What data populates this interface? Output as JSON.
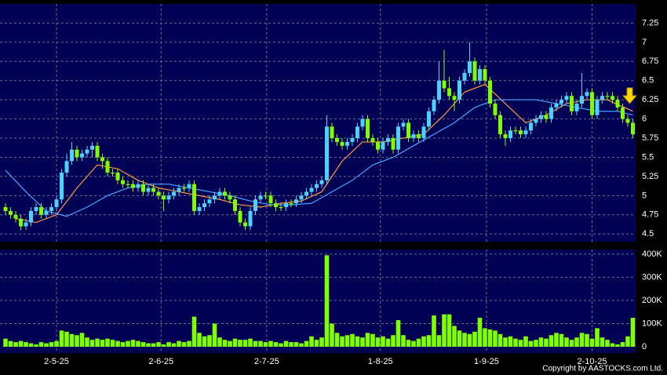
{
  "chart_data": [
    {
      "type": "candlestick",
      "open": [
        4.85,
        4.8,
        4.75,
        4.7,
        4.6,
        4.65,
        4.8,
        4.85,
        4.75,
        4.8,
        4.85,
        4.95,
        5.3,
        5.45,
        5.6,
        5.5,
        5.55,
        5.6,
        5.65,
        5.5,
        5.45,
        5.3,
        5.3,
        5.2,
        5.15,
        5.15,
        5.1,
        5.15,
        5.05,
        5.1,
        5.05,
        5.0,
        4.95,
        5.0,
        5.05,
        5.1,
        5.1,
        5.15,
        4.8,
        4.85,
        4.9,
        4.95,
        5.0,
        5.05,
        5.0,
        4.95,
        4.8,
        4.65,
        4.6,
        4.8,
        4.95,
        5.0,
        5.0,
        4.9,
        4.85,
        4.85,
        4.9,
        4.9,
        4.95,
        5.0,
        5.05,
        5.1,
        5.15,
        5.2,
        5.9,
        5.75,
        5.7,
        5.65,
        5.7,
        5.75,
        5.9,
        6.0,
        5.75,
        5.7,
        5.6,
        5.7,
        5.75,
        5.6,
        5.9,
        5.95,
        5.75,
        5.8,
        5.75,
        5.9,
        6.1,
        6.25,
        6.5,
        6.4,
        6.3,
        6.25,
        6.5,
        6.6,
        6.75,
        6.5,
        6.65,
        6.5,
        6.2,
        6.05,
        5.8,
        5.75,
        5.85,
        5.85,
        5.8,
        5.85,
        5.95,
        6.0,
        6.05,
        6.0,
        6.15,
        6.2,
        6.25,
        6.3,
        6.1,
        6.2,
        6.3,
        6.35,
        6.05,
        6.25,
        6.3,
        6.3,
        6.25,
        6.15,
        6.0,
        5.95
      ],
      "high": [
        4.9,
        4.85,
        4.8,
        4.75,
        4.7,
        4.85,
        4.9,
        4.9,
        4.85,
        4.9,
        5.0,
        5.35,
        5.55,
        5.7,
        5.65,
        5.6,
        5.65,
        5.7,
        5.7,
        5.55,
        5.5,
        5.35,
        5.35,
        5.25,
        5.2,
        5.2,
        5.2,
        5.2,
        5.15,
        5.15,
        5.1,
        5.05,
        5.05,
        5.1,
        5.15,
        5.15,
        5.2,
        5.2,
        4.9,
        4.95,
        5.0,
        5.05,
        5.1,
        5.1,
        5.05,
        5.0,
        4.85,
        4.7,
        4.85,
        5.0,
        5.05,
        5.05,
        5.05,
        4.95,
        4.9,
        4.95,
        4.95,
        5.0,
        5.05,
        5.1,
        5.15,
        5.2,
        5.25,
        6.05,
        5.95,
        5.8,
        5.75,
        5.75,
        5.8,
        5.95,
        6.05,
        6.05,
        5.8,
        5.75,
        5.75,
        5.8,
        5.8,
        5.95,
        6.0,
        6.0,
        5.85,
        5.85,
        5.95,
        6.15,
        6.3,
        6.75,
        6.9,
        6.55,
        6.35,
        6.55,
        6.65,
        7.0,
        6.8,
        6.7,
        6.7,
        6.55,
        6.25,
        6.1,
        5.85,
        5.9,
        5.9,
        5.9,
        5.9,
        6.0,
        6.05,
        6.1,
        6.1,
        6.2,
        6.25,
        6.3,
        6.35,
        6.35,
        6.25,
        6.6,
        6.4,
        6.4,
        6.3,
        6.35,
        6.35,
        6.35,
        6.3,
        6.2,
        6.05,
        6.0
      ],
      "low": [
        4.75,
        4.7,
        4.65,
        4.55,
        4.55,
        4.6,
        4.75,
        4.7,
        4.7,
        4.75,
        4.8,
        4.9,
        5.25,
        5.4,
        5.45,
        5.45,
        5.5,
        5.5,
        5.45,
        5.35,
        5.25,
        5.25,
        5.15,
        5.1,
        5.1,
        5.05,
        5.05,
        5.0,
        5.0,
        5.0,
        4.95,
        4.8,
        4.9,
        4.95,
        5.0,
        5.05,
        5.05,
        4.75,
        4.75,
        4.8,
        4.85,
        4.9,
        4.95,
        4.95,
        4.9,
        4.75,
        4.6,
        4.55,
        4.55,
        4.75,
        4.9,
        4.95,
        4.85,
        4.8,
        4.8,
        4.8,
        4.85,
        4.85,
        4.9,
        4.95,
        5.0,
        5.05,
        5.1,
        5.15,
        5.7,
        5.65,
        5.6,
        5.6,
        5.65,
        5.7,
        5.85,
        5.7,
        5.65,
        5.55,
        5.55,
        5.65,
        5.55,
        5.55,
        5.85,
        5.7,
        5.7,
        5.7,
        5.7,
        5.85,
        6.05,
        6.2,
        6.35,
        6.25,
        6.1,
        6.2,
        6.45,
        6.55,
        6.45,
        6.45,
        6.45,
        6.15,
        6.0,
        5.75,
        5.65,
        5.7,
        5.8,
        5.75,
        5.75,
        5.8,
        5.9,
        5.95,
        5.95,
        5.95,
        6.1,
        6.15,
        6.2,
        6.05,
        6.05,
        6.15,
        6.25,
        6.0,
        6.0,
        6.2,
        6.25,
        6.2,
        6.1,
        5.95,
        5.9,
        5.75
      ],
      "close": [
        4.8,
        4.75,
        4.7,
        4.6,
        4.65,
        4.8,
        4.85,
        4.75,
        4.8,
        4.85,
        4.95,
        5.3,
        5.45,
        5.6,
        5.5,
        5.55,
        5.6,
        5.65,
        5.5,
        5.45,
        5.3,
        5.3,
        5.2,
        5.15,
        5.15,
        5.1,
        5.15,
        5.05,
        5.1,
        5.05,
        5.0,
        4.95,
        5.0,
        5.05,
        5.1,
        5.1,
        5.15,
        4.8,
        4.85,
        4.9,
        4.95,
        5.0,
        5.05,
        5.0,
        4.95,
        4.8,
        4.65,
        4.6,
        4.8,
        4.95,
        5.0,
        5.0,
        4.9,
        4.85,
        4.85,
        4.9,
        4.9,
        4.95,
        5.0,
        5.05,
        5.1,
        5.15,
        5.2,
        5.9,
        5.75,
        5.7,
        5.65,
        5.7,
        5.75,
        5.9,
        6.0,
        5.75,
        5.7,
        5.6,
        5.7,
        5.75,
        5.6,
        5.9,
        5.95,
        5.75,
        5.8,
        5.75,
        5.9,
        6.1,
        6.25,
        6.5,
        6.4,
        6.3,
        6.25,
        6.5,
        6.6,
        6.75,
        6.5,
        6.65,
        6.5,
        6.2,
        6.05,
        5.8,
        5.75,
        5.85,
        5.85,
        5.8,
        5.85,
        5.95,
        6.0,
        6.05,
        6.0,
        6.15,
        6.2,
        6.25,
        6.3,
        6.1,
        6.2,
        6.3,
        6.35,
        6.05,
        6.25,
        6.3,
        6.3,
        6.25,
        6.15,
        6.0,
        5.95,
        5.8
      ],
      "up_color": "#4cd2ff",
      "down_color": "#80ff00",
      "lines": [
        {
          "color": "#ff9a3c",
          "x": [
            2,
            6,
            10,
            14,
            18,
            22,
            26,
            30,
            34,
            38,
            42,
            46,
            50,
            54,
            58,
            62,
            66,
            70,
            74,
            78,
            82,
            86,
            90,
            94,
            98,
            102,
            106,
            110,
            114,
            118,
            123
          ],
          "values": [
            4.7,
            4.65,
            4.75,
            5.1,
            5.4,
            5.35,
            5.2,
            5.1,
            5.05,
            5.0,
            4.95,
            4.88,
            4.85,
            4.9,
            4.93,
            5.05,
            5.45,
            5.7,
            5.7,
            5.75,
            5.8,
            6.05,
            6.35,
            6.45,
            6.2,
            5.95,
            6.05,
            6.2,
            6.25,
            6.25,
            6.1
          ]
        },
        {
          "color": "#4fa3ff",
          "x": [
            0,
            4,
            8,
            12,
            16,
            20,
            24,
            28,
            32,
            36,
            40,
            44,
            48,
            52,
            56,
            60,
            64,
            68,
            72,
            76,
            80,
            84,
            88,
            92,
            96,
            100,
            104,
            108,
            112,
            116,
            120,
            123
          ],
          "values": [
            5.33,
            5.05,
            4.8,
            4.73,
            4.85,
            5.0,
            5.1,
            5.15,
            5.15,
            5.1,
            5.05,
            5.0,
            4.93,
            4.88,
            4.88,
            4.9,
            5.05,
            5.2,
            5.4,
            5.5,
            5.65,
            5.8,
            5.95,
            6.15,
            6.25,
            6.25,
            6.25,
            6.2,
            6.15,
            6.1,
            6.1,
            6.05
          ]
        }
      ],
      "xlim": [
        -1.08,
        123.54
      ],
      "ylim": [
        4.4,
        7.5
      ],
      "yticks": [
        4.5,
        4.75,
        5,
        5.25,
        5.5,
        5.75,
        6,
        6.25,
        6.5,
        6.75,
        7,
        7.25
      ],
      "grid": true
    },
    {
      "type": "bar",
      "values": [
        35000,
        25000,
        20000,
        25000,
        20000,
        15000,
        10000,
        20000,
        15000,
        20000,
        25000,
        70000,
        65000,
        55000,
        50000,
        60000,
        40000,
        30000,
        35000,
        30000,
        35000,
        30000,
        25000,
        20000,
        25000,
        30000,
        25000,
        20000,
        15000,
        15000,
        20000,
        10000,
        20000,
        15000,
        25000,
        20000,
        25000,
        130000,
        60000,
        45000,
        50000,
        100000,
        40000,
        30000,
        25000,
        35000,
        30000,
        30000,
        35000,
        25000,
        25000,
        20000,
        25000,
        20000,
        15000,
        25000,
        20000,
        20000,
        15000,
        25000,
        45000,
        30000,
        40000,
        395000,
        100000,
        60000,
        45000,
        50000,
        55000,
        45000,
        40000,
        60000,
        55000,
        40000,
        45000,
        35000,
        50000,
        115000,
        50000,
        30000,
        25000,
        35000,
        45000,
        50000,
        135000,
        50000,
        140000,
        140000,
        90000,
        70000,
        60000,
        55000,
        65000,
        125000,
        80000,
        75000,
        70000,
        55000,
        40000,
        45000,
        35000,
        30000,
        45000,
        25000,
        30000,
        40000,
        35000,
        50000,
        60000,
        55000,
        40000,
        30000,
        40000,
        60000,
        55000,
        35000,
        80000,
        40000,
        30000,
        15000,
        10000,
        20000,
        45000,
        125000
      ],
      "color": "#80ff00",
      "xlim": [
        -1.08,
        123.54
      ],
      "ylim": [
        0,
        420000
      ],
      "xticks": [
        {
          "value": 10,
          "label": "2-5-25"
        },
        {
          "value": 30.5,
          "label": "2-6-25"
        },
        {
          "value": 51.2,
          "label": "2-7-25"
        },
        {
          "value": 73.5,
          "label": "1-8-25"
        },
        {
          "value": 94.3,
          "label": "1-9-25"
        },
        {
          "value": 115,
          "label": "2-10-25"
        }
      ],
      "yticks": [
        0,
        {
          "value": 100000,
          "label": "100K"
        },
        {
          "value": 200000,
          "label": "200K"
        },
        {
          "value": 300000,
          "label": "300K"
        },
        {
          "value": 400000,
          "label": "400K"
        }
      ],
      "grid": true
    }
  ],
  "copyright": "Copyright by AASTOCKS.com Ltd."
}
